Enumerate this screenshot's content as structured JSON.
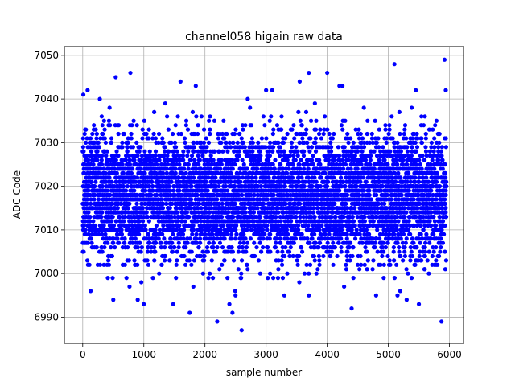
{
  "chart_data": {
    "type": "scatter",
    "title": "channel058 higain raw data",
    "xlabel": "sample number",
    "ylabel": "ADC Code",
    "xlim": [
      -300,
      6230
    ],
    "ylim": [
      6984,
      7052
    ],
    "xticks": [
      0,
      1000,
      2000,
      3000,
      4000,
      5000,
      6000
    ],
    "yticks": [
      6990,
      7000,
      7010,
      7020,
      7030,
      7040,
      7050
    ],
    "grid": true,
    "marker_color": "#0000ff",
    "n_samples": 6000,
    "band": {
      "x_range": [
        0,
        5950
      ],
      "y_center": 7018,
      "y_core_range": [
        7005,
        7032
      ]
    },
    "outliers": [
      {
        "x": 10,
        "y": 7041
      },
      {
        "x": 80,
        "y": 7042
      },
      {
        "x": 280,
        "y": 7040
      },
      {
        "x": 540,
        "y": 7045
      },
      {
        "x": 780,
        "y": 7046
      },
      {
        "x": 1380,
        "y": 7036
      },
      {
        "x": 1600,
        "y": 7044
      },
      {
        "x": 1850,
        "y": 7043
      },
      {
        "x": 2700,
        "y": 7040
      },
      {
        "x": 3000,
        "y": 7042
      },
      {
        "x": 3100,
        "y": 7042
      },
      {
        "x": 3550,
        "y": 7044
      },
      {
        "x": 3700,
        "y": 7046
      },
      {
        "x": 4000,
        "y": 7046
      },
      {
        "x": 4200,
        "y": 7043
      },
      {
        "x": 4250,
        "y": 7043
      },
      {
        "x": 5100,
        "y": 7048
      },
      {
        "x": 5450,
        "y": 7042
      },
      {
        "x": 5920,
        "y": 7049
      },
      {
        "x": 5940,
        "y": 7042
      },
      {
        "x": 1000,
        "y": 6993
      },
      {
        "x": 1250,
        "y": 7000
      },
      {
        "x": 1480,
        "y": 6993
      },
      {
        "x": 1750,
        "y": 6991
      },
      {
        "x": 2200,
        "y": 6989
      },
      {
        "x": 2400,
        "y": 6993
      },
      {
        "x": 2450,
        "y": 6991
      },
      {
        "x": 2600,
        "y": 6987
      },
      {
        "x": 2500,
        "y": 6995
      },
      {
        "x": 3300,
        "y": 6995
      },
      {
        "x": 3700,
        "y": 6995
      },
      {
        "x": 4400,
        "y": 6992
      },
      {
        "x": 4800,
        "y": 6995
      },
      {
        "x": 5150,
        "y": 6995
      },
      {
        "x": 5300,
        "y": 6994
      },
      {
        "x": 5500,
        "y": 6993
      },
      {
        "x": 5870,
        "y": 6989
      },
      {
        "x": 500,
        "y": 6994
      },
      {
        "x": 900,
        "y": 6994
      },
      {
        "x": 130,
        "y": 6996
      }
    ]
  }
}
